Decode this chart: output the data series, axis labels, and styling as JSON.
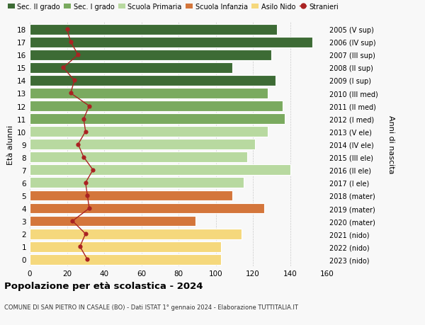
{
  "ages": [
    18,
    17,
    16,
    15,
    14,
    13,
    12,
    11,
    10,
    9,
    8,
    7,
    6,
    5,
    4,
    3,
    2,
    1,
    0
  ],
  "bar_values": [
    133,
    152,
    130,
    109,
    132,
    128,
    136,
    137,
    128,
    121,
    117,
    140,
    115,
    109,
    126,
    89,
    114,
    103,
    103
  ],
  "stranieri": [
    20,
    22,
    26,
    18,
    24,
    22,
    32,
    29,
    30,
    26,
    29,
    34,
    30,
    31,
    32,
    23,
    30,
    27,
    31
  ],
  "right_labels": [
    "2005 (V sup)",
    "2006 (IV sup)",
    "2007 (III sup)",
    "2008 (II sup)",
    "2009 (I sup)",
    "2010 (III med)",
    "2011 (II med)",
    "2012 (I med)",
    "2013 (V ele)",
    "2014 (IV ele)",
    "2015 (III ele)",
    "2016 (II ele)",
    "2017 (I ele)",
    "2018 (mater)",
    "2019 (mater)",
    "2020 (mater)",
    "2021 (nido)",
    "2022 (nido)",
    "2023 (nido)"
  ],
  "bar_colors": [
    "#3d6b35",
    "#3d6b35",
    "#3d6b35",
    "#3d6b35",
    "#3d6b35",
    "#7aaa5f",
    "#7aaa5f",
    "#7aaa5f",
    "#b8d9a0",
    "#b8d9a0",
    "#b8d9a0",
    "#b8d9a0",
    "#b8d9a0",
    "#d4763b",
    "#d4763b",
    "#d4763b",
    "#f5d87c",
    "#f5d87c",
    "#f5d87c"
  ],
  "legend_labels": [
    "Sec. II grado",
    "Sec. I grado",
    "Scuola Primaria",
    "Scuola Infanzia",
    "Asilo Nido",
    "Stranieri"
  ],
  "legend_colors": [
    "#3d6b35",
    "#7aaa5f",
    "#b8d9a0",
    "#d4763b",
    "#f5d87c",
    "#aa2222"
  ],
  "stranieri_color": "#aa2222",
  "ylabel_left": "Età alunni",
  "ylabel_right": "Anni di nascita",
  "title": "Popolazione per età scolastica - 2024",
  "subtitle": "COMUNE DI SAN PIETRO IN CASALE (BO) - Dati ISTAT 1° gennaio 2024 - Elaborazione TUTTITALIA.IT",
  "xlim": [
    0,
    160
  ],
  "xticks": [
    0,
    20,
    40,
    60,
    80,
    100,
    120,
    140,
    160
  ],
  "bg_color": "#f8f8f8",
  "grid_color": "#cccccc"
}
